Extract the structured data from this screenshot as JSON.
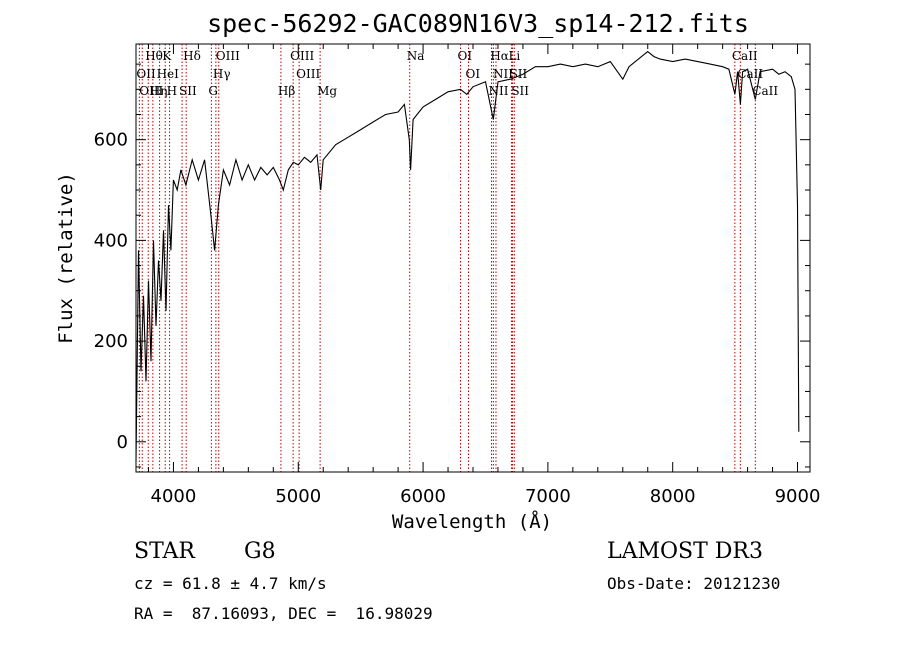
{
  "chart_data": {
    "type": "line",
    "title": "spec-56292-GAC089N16V3_sp14-212.fits",
    "xlabel": "Wavelength (Å)",
    "ylabel": "Flux (relative)",
    "xlim": [
      3700,
      9100
    ],
    "ylim": [
      -60,
      790
    ],
    "xticks": [
      {
        "value": 4000,
        "label": "4000"
      },
      {
        "value": 5000,
        "label": "5000"
      },
      {
        "value": 6000,
        "label": "6000"
      },
      {
        "value": 7000,
        "label": "7000"
      },
      {
        "value": 8000,
        "label": "8000"
      },
      {
        "value": 9000,
        "label": "9000"
      }
    ],
    "yticks": [
      {
        "value": 0,
        "label": "0"
      },
      {
        "value": 200,
        "label": "200"
      },
      {
        "value": 400,
        "label": "400"
      },
      {
        "value": 600,
        "label": "600"
      }
    ],
    "spectrum": {
      "name": "flux",
      "color": "#000000",
      "points": [
        [
          3700,
          -40
        ],
        [
          3720,
          380
        ],
        [
          3740,
          140
        ],
        [
          3760,
          290
        ],
        [
          3780,
          120
        ],
        [
          3800,
          320
        ],
        [
          3820,
          160
        ],
        [
          3840,
          400
        ],
        [
          3860,
          230
        ],
        [
          3880,
          360
        ],
        [
          3900,
          280
        ],
        [
          3920,
          420
        ],
        [
          3940,
          260
        ],
        [
          3960,
          470
        ],
        [
          3980,
          380
        ],
        [
          4000,
          520
        ],
        [
          4030,
          500
        ],
        [
          4060,
          540
        ],
        [
          4100,
          510
        ],
        [
          4150,
          560
        ],
        [
          4200,
          520
        ],
        [
          4250,
          560
        ],
        [
          4300,
          450
        ],
        [
          4330,
          380
        ],
        [
          4360,
          470
        ],
        [
          4400,
          540
        ],
        [
          4450,
          510
        ],
        [
          4500,
          560
        ],
        [
          4550,
          520
        ],
        [
          4600,
          550
        ],
        [
          4650,
          520
        ],
        [
          4700,
          545
        ],
        [
          4750,
          530
        ],
        [
          4800,
          545
        ],
        [
          4850,
          520
        ],
        [
          4880,
          500
        ],
        [
          4920,
          540
        ],
        [
          4960,
          555
        ],
        [
          5000,
          550
        ],
        [
          5050,
          565
        ],
        [
          5100,
          555
        ],
        [
          5150,
          570
        ],
        [
          5180,
          500
        ],
        [
          5200,
          560
        ],
        [
          5300,
          590
        ],
        [
          5400,
          605
        ],
        [
          5500,
          620
        ],
        [
          5600,
          635
        ],
        [
          5700,
          650
        ],
        [
          5800,
          655
        ],
        [
          5850,
          670
        ],
        [
          5890,
          600
        ],
        [
          5900,
          540
        ],
        [
          5920,
          640
        ],
        [
          6000,
          665
        ],
        [
          6100,
          680
        ],
        [
          6200,
          695
        ],
        [
          6300,
          700
        ],
        [
          6350,
          690
        ],
        [
          6400,
          705
        ],
        [
          6500,
          715
        ],
        [
          6563,
          640
        ],
        [
          6600,
          715
        ],
        [
          6700,
          720
        ],
        [
          6800,
          730
        ],
        [
          6900,
          745
        ],
        [
          7000,
          745
        ],
        [
          7100,
          750
        ],
        [
          7200,
          745
        ],
        [
          7300,
          750
        ],
        [
          7400,
          745
        ],
        [
          7500,
          755
        ],
        [
          7600,
          720
        ],
        [
          7650,
          745
        ],
        [
          7700,
          755
        ],
        [
          7800,
          775
        ],
        [
          7850,
          765
        ],
        [
          7900,
          760
        ],
        [
          8000,
          755
        ],
        [
          8100,
          760
        ],
        [
          8200,
          755
        ],
        [
          8300,
          750
        ],
        [
          8400,
          745
        ],
        [
          8450,
          740
        ],
        [
          8498,
          690
        ],
        [
          8520,
          735
        ],
        [
          8542,
          670
        ],
        [
          8560,
          735
        ],
        [
          8600,
          740
        ],
        [
          8662,
          680
        ],
        [
          8700,
          735
        ],
        [
          8800,
          740
        ],
        [
          8850,
          730
        ],
        [
          8900,
          735
        ],
        [
          8950,
          725
        ],
        [
          8980,
          700
        ],
        [
          9000,
          470
        ],
        [
          9010,
          20
        ]
      ]
    },
    "lines": [
      {
        "name": "Hθ",
        "x": 3798
      },
      {
        "name": "OII",
        "x": 3727
      },
      {
        "name": "OIII",
        "x": 3750
      },
      {
        "name": "K",
        "x": 3934
      },
      {
        "name": "HeI",
        "x": 3889
      },
      {
        "name": "Hη",
        "x": 3835
      },
      {
        "name": "Hδ",
        "x": 4102
      },
      {
        "name": "SII",
        "x": 4069
      },
      {
        "name": "H",
        "x": 3969
      },
      {
        "name": "OIII",
        "x": 4363
      },
      {
        "name": "Hγ",
        "x": 4340
      },
      {
        "name": "G",
        "x": 4304
      },
      {
        "name": "OIII",
        "x": 4959
      },
      {
        "name": "OIII",
        "x": 5007
      },
      {
        "name": "Hβ",
        "x": 4861
      },
      {
        "name": "Mg",
        "x": 5175
      },
      {
        "name": "Na",
        "x": 5893
      },
      {
        "name": "OI",
        "x": 6300
      },
      {
        "name": "OI",
        "x": 6364
      },
      {
        "name": "Hα",
        "x": 6563
      },
      {
        "name": "NII",
        "x": 6548
      },
      {
        "name": "NII",
        "x": 6584
      },
      {
        "name": "SII",
        "x": 6717
      },
      {
        "name": "SII",
        "x": 6731
      },
      {
        "name": "Li",
        "x": 6708
      },
      {
        "name": "CaII",
        "x": 8498
      },
      {
        "name": "CaII",
        "x": 8542
      },
      {
        "name": "CaII",
        "x": 8662
      }
    ],
    "line_color": "#c00000"
  },
  "info": {
    "object_class": "STAR",
    "subclass": "G8",
    "survey": "LAMOST DR3",
    "redshift": "cz = 61.8 ± 4.7 km/s",
    "obs_date": "Obs-Date: 20121230",
    "coords": "RA =  87.16093, DEC =  16.98029"
  }
}
